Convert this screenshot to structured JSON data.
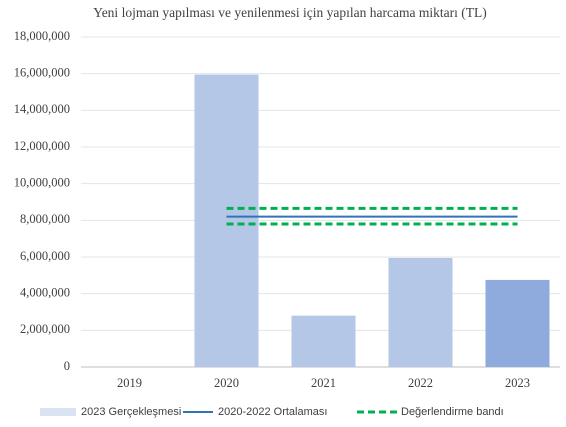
{
  "chart_data": {
    "type": "bar",
    "title": "Yeni lojman yapılması ve yenilenmesi için yapılan harcama miktarı (TL)",
    "categories": [
      "2019",
      "2020",
      "2021",
      "2022",
      "2023"
    ],
    "series": [
      {
        "name": "2023 Gerçekleşmesi",
        "color": "#dae3f3",
        "colors": [
          "#b4c7e7",
          "#b4c7e7",
          "#b4c7e7",
          "#b4c7e7",
          "#8faadc"
        ],
        "values": [
          0,
          15950000,
          2800000,
          5950000,
          4750000
        ]
      },
      {
        "name": "2020-2022 Ortalaması",
        "color": "#2e75b6",
        "values": [
          null,
          8200000,
          8200000,
          8200000,
          8200000
        ]
      },
      {
        "name": "Değerlendirme bandı",
        "color": "#00b050",
        "upper": [
          null,
          8650000,
          8650000,
          8650000,
          8650000
        ],
        "lower": [
          null,
          7800000,
          7800000,
          7800000,
          7800000
        ]
      }
    ],
    "ylim": [
      0,
      18000000
    ],
    "yticks": [
      0,
      {
        "value": 2000000,
        "label": "2,000,000"
      },
      {
        "value": 4000000,
        "label": "4,000,000"
      },
      {
        "value": 6000000,
        "label": "6,000,000"
      },
      {
        "value": 8000000,
        "label": "8,000,000"
      },
      {
        "value": 10000000,
        "label": "10,000,000"
      },
      {
        "value": 12000000,
        "label": "12,000,000"
      },
      {
        "value": 14000000,
        "label": "14,000,000"
      },
      {
        "value": 16000000,
        "label": "16,000,000"
      },
      {
        "value": 18000000,
        "label": "18,000,000"
      }
    ],
    "grid": true
  }
}
